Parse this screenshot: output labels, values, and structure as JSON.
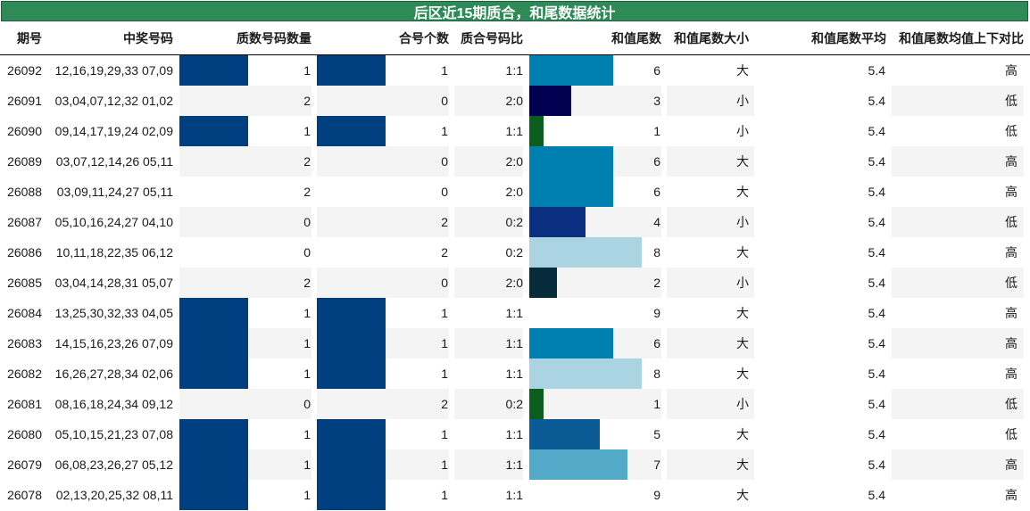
{
  "title": "后区近15期质合，和尾数据统计",
  "headers": [
    "期号",
    "中奖号码",
    "质数号码数量",
    "合号个数",
    "质合号码比",
    "和值尾数",
    "和值尾数大小",
    "和值尾数平均",
    "和值尾数均值上下对比"
  ],
  "colors": {
    "title_bg": "#2e8b57",
    "prime_bar": "#003f7f",
    "stripe": "#f4f4f4",
    "tail_colors": {
      "1": "#0c5e1f",
      "2": "#062b3a",
      "3": "#000050",
      "4": "#0b2f80",
      "5": "#0a5a96",
      "6": "#0080b0",
      "7": "#52aac8",
      "8": "#aad4e2",
      "9": "#ffffff"
    }
  },
  "chart_data": {
    "type": "table",
    "columns": [
      "期号",
      "中奖号码",
      "质数号码数量",
      "合号个数",
      "质合号码比",
      "和值尾数",
      "和值尾数大小",
      "和值尾数平均",
      "和值尾数均值上下对比"
    ],
    "rows": [
      {
        "issue": "26092",
        "numbers": "12,16,19,29,33 07,09",
        "prime_count": 1,
        "composite_count": 1,
        "ratio": "1:1",
        "tail": 6,
        "size": "大",
        "avg": "5.4",
        "cmp": "高"
      },
      {
        "issue": "26091",
        "numbers": "03,04,07,12,32 01,02",
        "prime_count": 2,
        "composite_count": 0,
        "ratio": "2:0",
        "tail": 3,
        "size": "小",
        "avg": "5.4",
        "cmp": "低"
      },
      {
        "issue": "26090",
        "numbers": "09,14,17,19,24 02,09",
        "prime_count": 1,
        "composite_count": 1,
        "ratio": "1:1",
        "tail": 1,
        "size": "小",
        "avg": "5.4",
        "cmp": "低"
      },
      {
        "issue": "26089",
        "numbers": "03,07,12,14,26 05,11",
        "prime_count": 2,
        "composite_count": 0,
        "ratio": "2:0",
        "tail": 6,
        "size": "大",
        "avg": "5.4",
        "cmp": "高"
      },
      {
        "issue": "26088",
        "numbers": "03,09,11,24,27 05,11",
        "prime_count": 2,
        "composite_count": 0,
        "ratio": "2:0",
        "tail": 6,
        "size": "大",
        "avg": "5.4",
        "cmp": "高"
      },
      {
        "issue": "26087",
        "numbers": "05,10,16,24,27 04,10",
        "prime_count": 0,
        "composite_count": 2,
        "ratio": "0:2",
        "tail": 4,
        "size": "小",
        "avg": "5.4",
        "cmp": "低"
      },
      {
        "issue": "26086",
        "numbers": "10,11,18,22,35 06,12",
        "prime_count": 0,
        "composite_count": 2,
        "ratio": "0:2",
        "tail": 8,
        "size": "大",
        "avg": "5.4",
        "cmp": "高"
      },
      {
        "issue": "26085",
        "numbers": "03,04,14,28,31 05,07",
        "prime_count": 2,
        "composite_count": 0,
        "ratio": "2:0",
        "tail": 2,
        "size": "小",
        "avg": "5.4",
        "cmp": "低"
      },
      {
        "issue": "26084",
        "numbers": "13,25,30,32,33 04,05",
        "prime_count": 1,
        "composite_count": 1,
        "ratio": "1:1",
        "tail": 9,
        "size": "大",
        "avg": "5.4",
        "cmp": "高"
      },
      {
        "issue": "26083",
        "numbers": "14,15,16,23,26 07,09",
        "prime_count": 1,
        "composite_count": 1,
        "ratio": "1:1",
        "tail": 6,
        "size": "大",
        "avg": "5.4",
        "cmp": "高"
      },
      {
        "issue": "26082",
        "numbers": "16,26,27,28,34 02,06",
        "prime_count": 1,
        "composite_count": 1,
        "ratio": "1:1",
        "tail": 8,
        "size": "大",
        "avg": "5.4",
        "cmp": "高"
      },
      {
        "issue": "26081",
        "numbers": "08,16,18,24,34 09,12",
        "prime_count": 0,
        "composite_count": 2,
        "ratio": "0:2",
        "tail": 1,
        "size": "小",
        "avg": "5.4",
        "cmp": "低"
      },
      {
        "issue": "26080",
        "numbers": "05,10,15,21,23 07,08",
        "prime_count": 1,
        "composite_count": 1,
        "ratio": "1:1",
        "tail": 5,
        "size": "大",
        "avg": "5.4",
        "cmp": "低"
      },
      {
        "issue": "26079",
        "numbers": "06,08,23,26,27 05,12",
        "prime_count": 1,
        "composite_count": 1,
        "ratio": "1:1",
        "tail": 7,
        "size": "大",
        "avg": "5.4",
        "cmp": "高"
      },
      {
        "issue": "26078",
        "numbers": "02,13,20,25,32 08,11",
        "prime_count": 1,
        "composite_count": 1,
        "ratio": "1:1",
        "tail": 9,
        "size": "大",
        "avg": "5.4",
        "cmp": "高"
      }
    ]
  }
}
